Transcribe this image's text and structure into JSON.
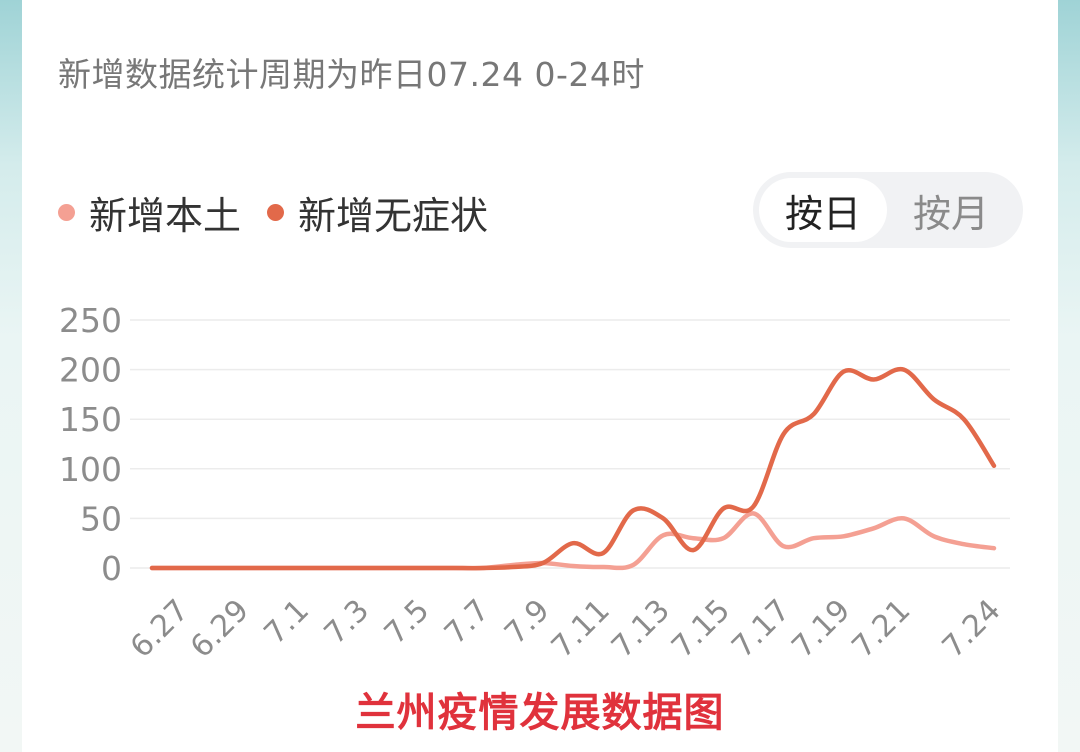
{
  "header": {
    "subtitle": "新增数据统计周期为昨日07.24 0-24时"
  },
  "toggle": {
    "by_day": "按日",
    "by_month": "按月",
    "selected": "by_day"
  },
  "colors": {
    "local": "#f4a093",
    "asymptomatic": "#e2694a",
    "title": "#e0323c"
  },
  "chart_data": {
    "type": "line",
    "title": "兰州疫情发展数据图",
    "xlabel": "",
    "ylabel": "",
    "ylim": [
      0,
      250
    ],
    "yticks": [
      0,
      50,
      100,
      150,
      200,
      250
    ],
    "grid": true,
    "legend_position": "top-left",
    "x": [
      "6.26",
      "6.27",
      "6.28",
      "6.29",
      "6.30",
      "7.1",
      "7.2",
      "7.3",
      "7.4",
      "7.5",
      "7.6",
      "7.7",
      "7.8",
      "7.9",
      "7.10",
      "7.11",
      "7.12",
      "7.13",
      "7.14",
      "7.15",
      "7.16",
      "7.17",
      "7.18",
      "7.19",
      "7.20",
      "7.21",
      "7.22",
      "7.23",
      "7.24"
    ],
    "xtick_labels": [
      "6.27",
      "6.29",
      "7.1",
      "7.3",
      "7.5",
      "7.7",
      "7.9",
      "7.11",
      "7.13",
      "7.15",
      "7.17",
      "7.19",
      "7.21",
      "7.24"
    ],
    "xtick_values": [
      "6.27",
      "6.29",
      "7.1",
      "7.3",
      "7.5",
      "7.7",
      "7.9",
      "7.11",
      "7.13",
      "7.15",
      "7.17",
      "7.19",
      "7.21",
      "7.24"
    ],
    "series": [
      {
        "name": "新增本土",
        "values": [
          0,
          0,
          0,
          0,
          0,
          0,
          0,
          0,
          0,
          0,
          0,
          0,
          3,
          5,
          2,
          1,
          3,
          33,
          30,
          30,
          55,
          22,
          30,
          32,
          40,
          50,
          32,
          24,
          20
        ]
      },
      {
        "name": "新增无症状",
        "values": [
          0,
          0,
          0,
          0,
          0,
          0,
          0,
          0,
          0,
          0,
          0,
          0,
          1,
          5,
          25,
          15,
          58,
          50,
          18,
          60,
          62,
          135,
          155,
          198,
          190,
          200,
          170,
          150,
          103
        ]
      }
    ]
  }
}
